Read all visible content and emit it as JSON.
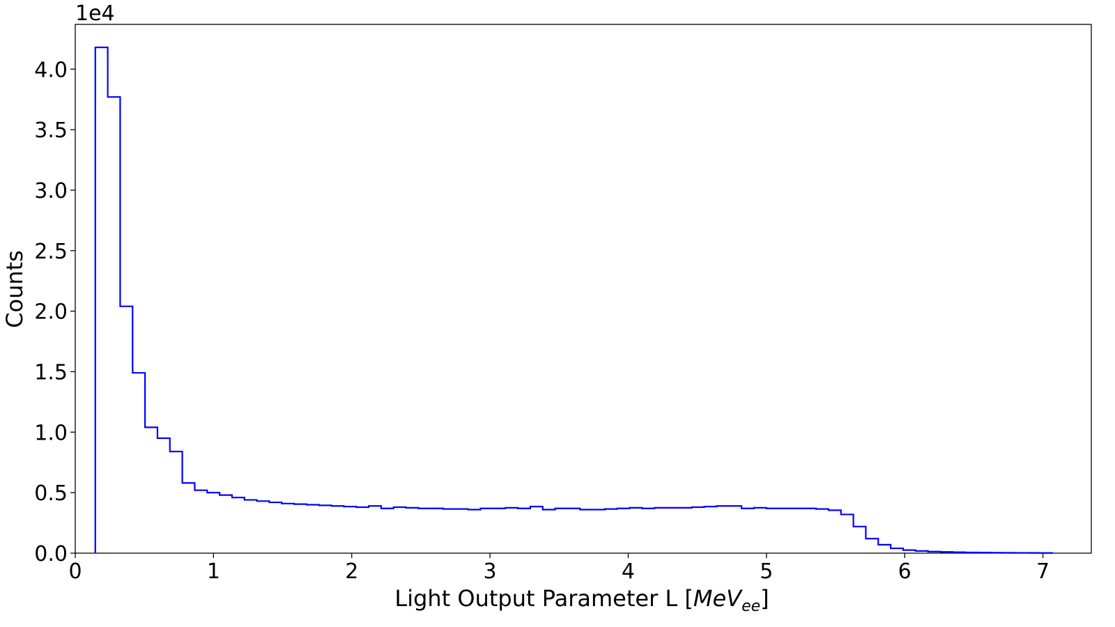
{
  "chart_data": {
    "type": "histogram",
    "xlabel_main": "Light Output Parameter L [",
    "xlabel_unit": "MeV",
    "xlabel_sub": "ee",
    "xlabel_end": "]",
    "ylabel": "Counts",
    "offset_text": "1e4",
    "xlim": [
      0,
      7.35
    ],
    "ylim": [
      0,
      43700
    ],
    "x_ticks": [
      0,
      1,
      2,
      3,
      4,
      5,
      6,
      7
    ],
    "x_tick_labels": [
      "0",
      "1",
      "2",
      "3",
      "4",
      "5",
      "6",
      "7"
    ],
    "y_ticks": [
      0,
      5000,
      10000,
      15000,
      20000,
      25000,
      30000,
      35000,
      40000
    ],
    "y_tick_labels": [
      "0.0",
      "0.5",
      "1.0",
      "1.5",
      "2.0",
      "2.5",
      "3.0",
      "3.5",
      "4.0"
    ],
    "grid": false,
    "line_color": "#0000ff",
    "bin_start": 0.145,
    "bin_width": 0.0899,
    "counts": [
      41800,
      37700,
      20400,
      14900,
      10400,
      9500,
      8400,
      5800,
      5200,
      5000,
      4800,
      4600,
      4400,
      4300,
      4200,
      4100,
      4050,
      4000,
      3950,
      3900,
      3850,
      3800,
      3900,
      3700,
      3800,
      3750,
      3700,
      3700,
      3650,
      3650,
      3600,
      3700,
      3700,
      3750,
      3700,
      3850,
      3600,
      3700,
      3700,
      3600,
      3600,
      3650,
      3700,
      3750,
      3700,
      3750,
      3750,
      3750,
      3800,
      3850,
      3900,
      3900,
      3700,
      3750,
      3700,
      3700,
      3700,
      3700,
      3650,
      3550,
      3200,
      2200,
      1200,
      700,
      400,
      250,
      180,
      130,
      100,
      80,
      60,
      50,
      40,
      30,
      25,
      20,
      15
    ]
  }
}
